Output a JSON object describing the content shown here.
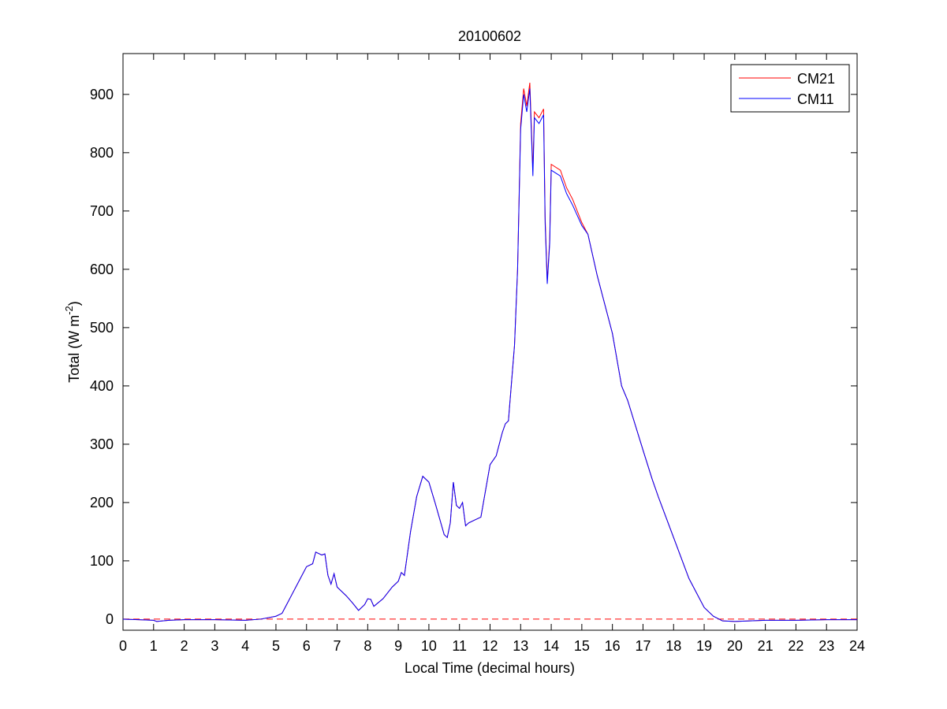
{
  "chart_data": {
    "type": "line",
    "title": "20100602",
    "xlabel": "Local Time (decimal hours)",
    "ylabel_parts": [
      "Total (W m",
      "-2",
      ")"
    ],
    "x": [
      0,
      0.5,
      1,
      1.1,
      1.5,
      2,
      3,
      4,
      4.5,
      5,
      5.2,
      5.5,
      5.8,
      6,
      6.2,
      6.3,
      6.5,
      6.6,
      6.7,
      6.8,
      6.9,
      7,
      7.3,
      7.5,
      7.7,
      7.9,
      8,
      8.1,
      8.2,
      8.5,
      8.8,
      9,
      9.1,
      9.2,
      9.4,
      9.6,
      9.8,
      10,
      10.2,
      10.5,
      10.6,
      10.7,
      10.8,
      10.9,
      11,
      11.1,
      11.2,
      11.3,
      11.5,
      11.7,
      12,
      12.2,
      12.4,
      12.5,
      12.6,
      12.8,
      12.9,
      13,
      13.1,
      13.2,
      13.3,
      13.4,
      13.45,
      13.6,
      13.75,
      13.8,
      13.87,
      13.95,
      14,
      14.3,
      14.5,
      14.7,
      15,
      15.2,
      15.5,
      16,
      16.3,
      16.5,
      17,
      17.3,
      17.5,
      18,
      18.5,
      19,
      19.3,
      19.6,
      20,
      21,
      22,
      23,
      24
    ],
    "series": [
      {
        "name": "CM21",
        "color": "#ff0000",
        "values": [
          0,
          -1,
          -2,
          -4,
          -2,
          -1,
          -1,
          -2,
          0,
          5,
          10,
          40,
          70,
          90,
          95,
          115,
          110,
          112,
          75,
          60,
          78,
          55,
          40,
          28,
          15,
          25,
          35,
          34,
          22,
          35,
          55,
          65,
          80,
          75,
          150,
          210,
          245,
          235,
          200,
          145,
          140,
          165,
          235,
          195,
          190,
          200,
          160,
          165,
          170,
          175,
          265,
          280,
          320,
          335,
          340,
          470,
          600,
          850,
          910,
          880,
          920,
          770,
          870,
          860,
          875,
          690,
          580,
          650,
          780,
          770,
          740,
          720,
          680,
          660,
          590,
          490,
          400,
          375,
          290,
          240,
          210,
          140,
          70,
          20,
          5,
          -3,
          -4,
          -2,
          -2,
          -1,
          -1
        ]
      },
      {
        "name": "CM11",
        "color": "#0000ff",
        "values": [
          0,
          -1,
          -2,
          -4,
          -2,
          -1,
          -1,
          -2,
          0,
          5,
          10,
          40,
          70,
          90,
          95,
          115,
          110,
          112,
          75,
          60,
          78,
          55,
          40,
          28,
          15,
          25,
          35,
          34,
          22,
          35,
          55,
          65,
          80,
          75,
          150,
          210,
          245,
          235,
          200,
          145,
          140,
          165,
          235,
          195,
          190,
          200,
          160,
          165,
          170,
          175,
          265,
          280,
          320,
          335,
          340,
          470,
          600,
          840,
          900,
          870,
          910,
          760,
          860,
          850,
          865,
          680,
          575,
          645,
          770,
          760,
          730,
          710,
          675,
          660,
          590,
          490,
          400,
          375,
          290,
          240,
          210,
          140,
          70,
          20,
          5,
          -3,
          -4,
          -2,
          -2,
          -1,
          -1
        ]
      }
    ],
    "reference_line": {
      "value": 0,
      "color": "#ff0000"
    },
    "xlim": [
      0,
      24
    ],
    "xticks": [
      0,
      1,
      2,
      3,
      4,
      5,
      6,
      7,
      8,
      9,
      10,
      11,
      12,
      13,
      14,
      15,
      16,
      17,
      18,
      19,
      20,
      21,
      22,
      23,
      24
    ],
    "ylim": [
      -19,
      970
    ],
    "yticks": [
      0,
      100,
      200,
      300,
      400,
      500,
      600,
      700,
      800,
      900
    ],
    "legend": "upper right"
  }
}
